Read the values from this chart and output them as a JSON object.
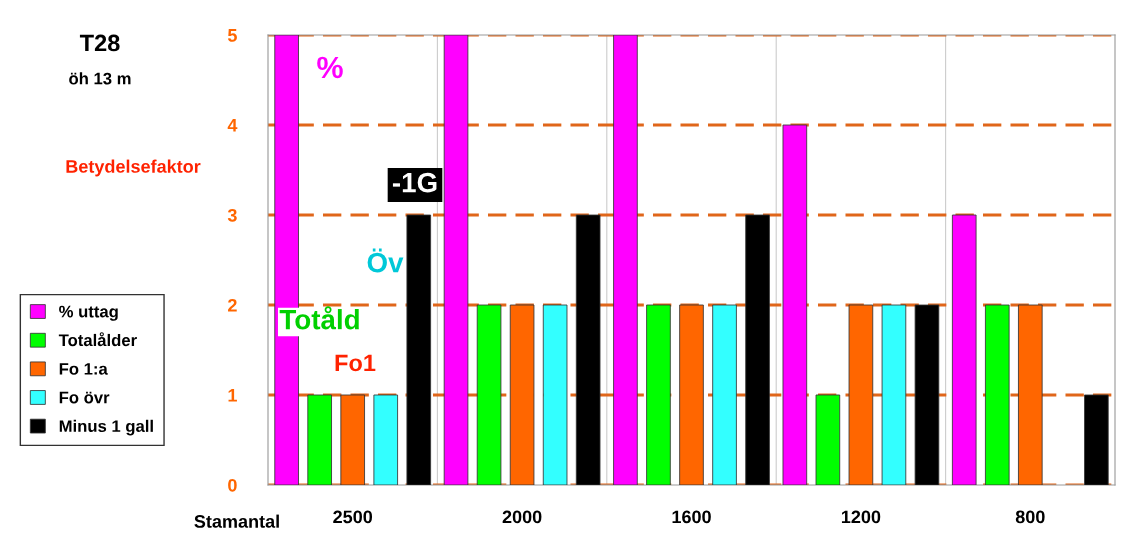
{
  "chart_data": {
    "type": "bar",
    "title": "T28",
    "subtitle": "öh 13 m",
    "xlabel": "Stamantal",
    "ylabel": "Betydelsefaktor",
    "categories": [
      "2500",
      "2000",
      "1600",
      "1200",
      "800"
    ],
    "series": [
      {
        "name": "% uttag",
        "color": "#ff00ff",
        "values": [
          5,
          5,
          5,
          4,
          3
        ]
      },
      {
        "name": "Totalålder",
        "color": "#00ff00",
        "values": [
          1,
          2,
          2,
          1,
          2
        ]
      },
      {
        "name": "Fo 1:a",
        "color": "#ff6600",
        "values": [
          1,
          2,
          2,
          2,
          2
        ]
      },
      {
        "name": "Fo övr",
        "color": "#33ffff",
        "values": [
          1,
          2,
          2,
          2,
          null
        ]
      },
      {
        "name": "Minus 1 gall",
        "color": "#000000",
        "values": [
          3,
          3,
          3,
          2,
          1
        ]
      }
    ],
    "annotations": [
      "%",
      "Totåld",
      "Fo1",
      "Öv",
      "-1G"
    ],
    "ylim": [
      0,
      5
    ],
    "yticks": [
      0,
      1,
      2,
      3,
      4,
      5
    ],
    "grid": "y",
    "legend": "left"
  }
}
